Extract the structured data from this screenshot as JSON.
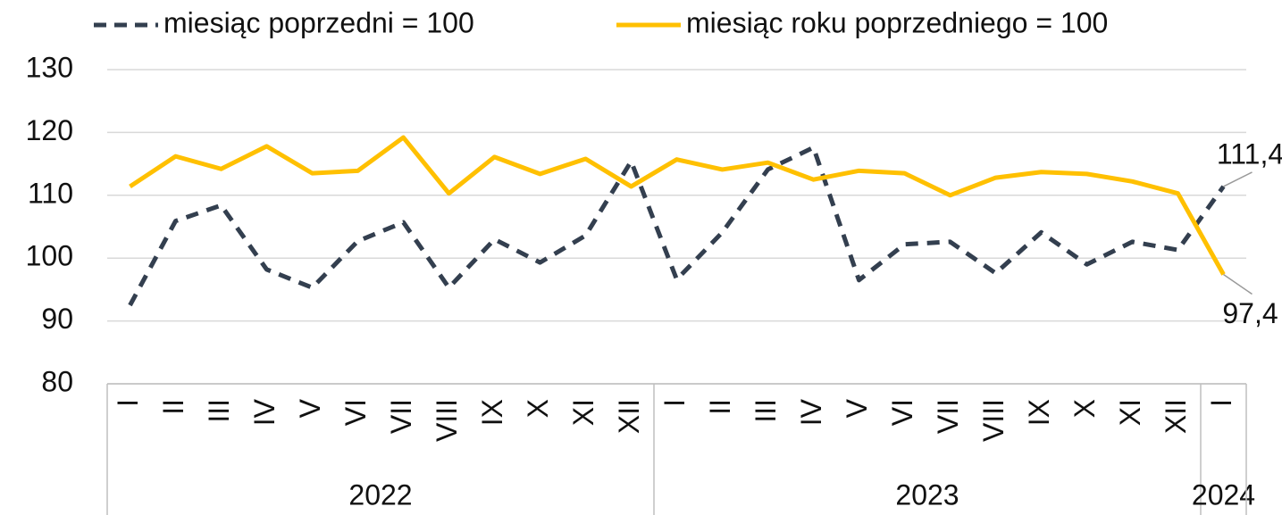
{
  "chart_data": {
    "type": "line",
    "categories": [
      "I",
      "II",
      "III",
      "IV",
      "V",
      "VI",
      "VII",
      "VIII",
      "IX",
      "X",
      "XI",
      "XII",
      "I",
      "II",
      "III",
      "IV",
      "V",
      "VI",
      "VII",
      "VIII",
      "IX",
      "X",
      "XI",
      "XII",
      "I"
    ],
    "years": [
      "2022",
      "2023",
      "2024"
    ],
    "series": [
      {
        "name": "miesiąc poprzedni = 100",
        "color": "#333f4f",
        "dashed": true,
        "values": [
          92.5,
          105.9,
          108.4,
          98.2,
          95.3,
          102.7,
          105.7,
          95.3,
          103.0,
          99.3,
          103.6,
          115.4,
          96.6,
          104.1,
          114.1,
          117.6,
          96.5,
          102.2,
          102.6,
          97.6,
          104.1,
          99.0,
          102.6,
          101.3,
          111.4
        ],
        "value_labels": [
          null,
          null,
          null,
          null,
          null,
          null,
          null,
          null,
          null,
          null,
          null,
          null,
          null,
          null,
          null,
          null,
          null,
          null,
          null,
          null,
          null,
          null,
          null,
          null,
          "111,4"
        ]
      },
      {
        "name": "miesiąc roku poprzedniego = 100",
        "color": "#ffc000",
        "dashed": false,
        "values": [
          111.4,
          116.2,
          114.2,
          117.8,
          113.5,
          113.9,
          119.2,
          110.3,
          116.1,
          113.4,
          115.8,
          111.4,
          115.7,
          114.1,
          115.2,
          112.5,
          113.9,
          113.5,
          110.0,
          112.8,
          113.7,
          113.4,
          112.2,
          110.3,
          97.4
        ],
        "value_labels": [
          null,
          null,
          null,
          null,
          null,
          null,
          null,
          null,
          null,
          null,
          null,
          null,
          null,
          null,
          null,
          null,
          null,
          null,
          null,
          null,
          null,
          null,
          null,
          null,
          "97,4"
        ]
      }
    ],
    "ylim": [
      80,
      130
    ],
    "yticks": [
      80,
      90,
      100,
      110,
      120,
      130
    ],
    "grid": true
  }
}
